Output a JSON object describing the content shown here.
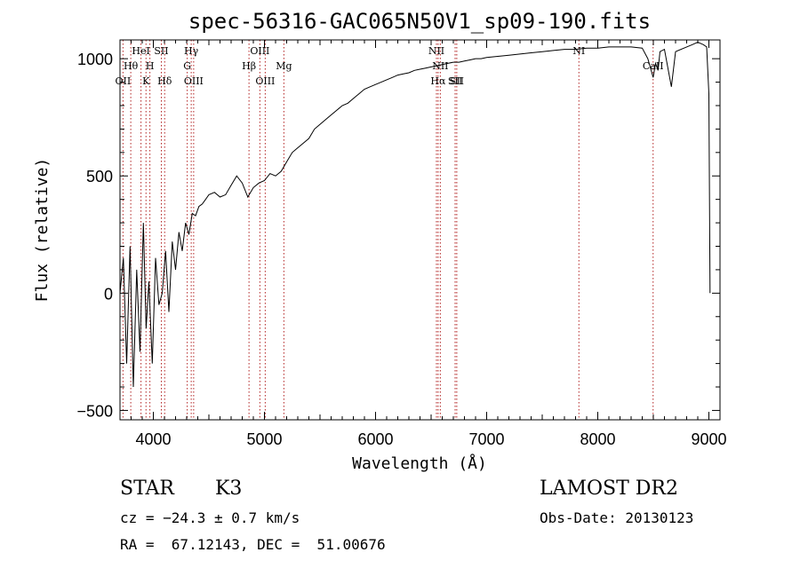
{
  "chart_data": {
    "type": "line",
    "title": "spec-56316-GAC065N50V1_sp09-190.fits",
    "xlabel": "Wavelength (Å)",
    "ylabel": "Flux (relative)",
    "xlim": [
      3700,
      9100
    ],
    "ylim": [
      -540,
      1080
    ],
    "x_ticks": [
      4000,
      5000,
      6000,
      7000,
      8000,
      9000
    ],
    "y_ticks": [
      -500,
      0,
      500,
      1000
    ],
    "x_tick_labels": [
      "4000",
      "5000",
      "6000",
      "7000",
      "8000",
      "9000"
    ],
    "y_tick_labels": [
      "−500",
      "0",
      "500",
      "1000"
    ],
    "grid": false,
    "spectrum": {
      "x": [
        3700,
        3730,
        3760,
        3790,
        3820,
        3850,
        3880,
        3910,
        3935,
        3960,
        3990,
        4020,
        4050,
        4080,
        4110,
        4140,
        4170,
        4200,
        4230,
        4260,
        4290,
        4320,
        4350,
        4380,
        4410,
        4440,
        4470,
        4500,
        4550,
        4600,
        4650,
        4700,
        4750,
        4800,
        4850,
        4900,
        4950,
        5000,
        5050,
        5100,
        5150,
        5200,
        5250,
        5300,
        5350,
        5400,
        5450,
        5500,
        5550,
        5600,
        5650,
        5700,
        5750,
        5800,
        5850,
        5900,
        5950,
        6000,
        6050,
        6100,
        6150,
        6200,
        6250,
        6300,
        6350,
        6400,
        6450,
        6500,
        6550,
        6600,
        6650,
        6700,
        6750,
        6800,
        6850,
        6900,
        6950,
        7000,
        7100,
        7200,
        7300,
        7400,
        7500,
        7600,
        7700,
        7800,
        7900,
        8000,
        8100,
        8200,
        8300,
        8400,
        8450,
        8498,
        8520,
        8542,
        8560,
        8600,
        8662,
        8700,
        8800,
        8850,
        8900,
        8950,
        8980,
        9000,
        9010
      ],
      "y": [
        0,
        150,
        -300,
        200,
        -400,
        100,
        -250,
        300,
        -150,
        50,
        -300,
        150,
        -50,
        0,
        180,
        -80,
        220,
        100,
        260,
        180,
        300,
        250,
        340,
        330,
        370,
        380,
        400,
        420,
        430,
        410,
        420,
        460,
        500,
        470,
        410,
        450,
        470,
        480,
        510,
        500,
        520,
        560,
        600,
        620,
        640,
        660,
        700,
        720,
        740,
        760,
        780,
        800,
        810,
        830,
        850,
        870,
        880,
        890,
        900,
        910,
        920,
        930,
        935,
        940,
        950,
        955,
        960,
        965,
        970,
        975,
        980,
        985,
        985,
        990,
        995,
        1000,
        1000,
        1005,
        1010,
        1015,
        1020,
        1025,
        1030,
        1035,
        1040,
        1040,
        1045,
        1045,
        1050,
        1050,
        1050,
        1045,
        1000,
        920,
        980,
        950,
        1030,
        1040,
        880,
        1030,
        1050,
        1060,
        1070,
        1060,
        1050,
        850,
        0
      ],
      "color": "#000000"
    },
    "line_markers": [
      {
        "label": "OII",
        "wavelength": 3727,
        "row": 3
      },
      {
        "label": "Hθ",
        "wavelength": 3797,
        "row": 2
      },
      {
        "label": "HeI",
        "wavelength": 3889,
        "row": 1
      },
      {
        "label": "K",
        "wavelength": 3934,
        "row": 3
      },
      {
        "label": "SII",
        "wavelength": 4072,
        "row": 1
      },
      {
        "label": "H",
        "wavelength": 3969,
        "row": 2
      },
      {
        "label": "Hδ",
        "wavelength": 4102,
        "row": 3
      },
      {
        "label": "Hγ",
        "wavelength": 4341,
        "row": 1
      },
      {
        "label": "G",
        "wavelength": 4305,
        "row": 2
      },
      {
        "label": "OIII",
        "wavelength": 4363,
        "row": 3
      },
      {
        "label": "OIII",
        "wavelength": 4959,
        "row": 1
      },
      {
        "label": "Hβ",
        "wavelength": 4861,
        "row": 2
      },
      {
        "label": "OIII",
        "wavelength": 5007,
        "row": 3
      },
      {
        "label": "Mg",
        "wavelength": 5175,
        "row": 2
      },
      {
        "label": "NII",
        "wavelength": 6548,
        "row": 1
      },
      {
        "label": "NII",
        "wavelength": 6583,
        "row": 2
      },
      {
        "label": "Hα",
        "wavelength": 6563,
        "row": 3
      },
      {
        "label": "SII",
        "wavelength": 6716,
        "row": 3
      },
      {
        "label": "SII",
        "wavelength": 6731,
        "row": 3
      },
      {
        "label": "NI",
        "wavelength": 7830,
        "row": 1
      },
      {
        "label": "CaII",
        "wavelength": 8498,
        "row": 2
      }
    ],
    "marker_color": "#b22222"
  },
  "info": {
    "object_class": "STAR",
    "subclass": "K3",
    "survey": "LAMOST DR2",
    "cz": "cz = −24.3 ± 0.7 km/s",
    "obs_date": "Obs-Date: 20130123",
    "coords": "RA =  67.12143, DEC =  51.00676"
  }
}
